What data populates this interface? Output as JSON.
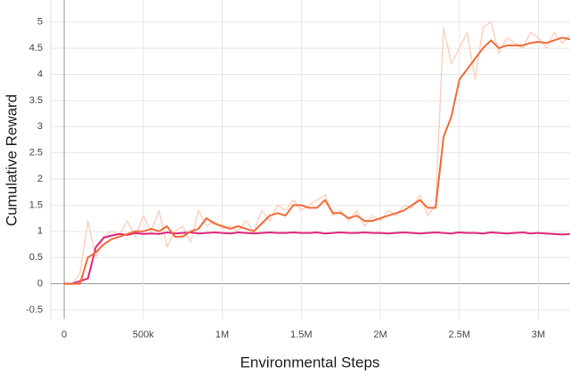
{
  "chart_data": {
    "type": "line",
    "x_label": "Environmental Steps",
    "y_label": "Cumulative Reward",
    "x": [
      0,
      50000,
      100000,
      150000,
      200000,
      250000,
      300000,
      350000,
      400000,
      450000,
      500000,
      550000,
      600000,
      650000,
      700000,
      750000,
      800000,
      850000,
      900000,
      950000,
      1000000,
      1050000,
      1100000,
      1150000,
      1200000,
      1250000,
      1300000,
      1350000,
      1400000,
      1450000,
      1500000,
      1550000,
      1600000,
      1650000,
      1700000,
      1750000,
      1800000,
      1850000,
      1900000,
      1950000,
      2000000,
      2050000,
      2100000,
      2150000,
      2200000,
      2250000,
      2300000,
      2350000,
      2400000,
      2450000,
      2500000,
      2550000,
      2600000,
      2650000,
      2700000,
      2750000,
      2800000,
      2850000,
      2900000,
      2950000,
      3000000,
      3050000,
      3100000,
      3150000,
      3200000
    ],
    "series": [
      {
        "color": "#fcd2c2",
        "values": [
          0,
          0,
          0.2,
          1.2,
          0.5,
          0.9,
          1.0,
          0.95,
          1.2,
          0.9,
          1.3,
          1.0,
          1.4,
          0.7,
          1.0,
          1.1,
          0.8,
          1.4,
          1.1,
          1.2,
          1.05,
          1.1,
          1.0,
          1.2,
          1.0,
          1.4,
          1.2,
          1.5,
          1.4,
          1.6,
          1.4,
          1.5,
          1.6,
          1.7,
          1.3,
          1.4,
          1.2,
          1.4,
          1.1,
          1.3,
          1.2,
          1.4,
          1.3,
          1.5,
          1.45,
          1.7,
          1.3,
          1.5,
          4.9,
          4.2,
          4.5,
          4.8,
          3.9,
          4.9,
          5.0,
          4.4,
          4.7,
          4.6,
          4.5,
          4.8,
          4.7,
          4.5,
          4.8,
          4.6,
          4.75
        ]
      },
      {
        "color": "#e0267b",
        "values": [
          0,
          0,
          0.05,
          0.1,
          0.7,
          0.88,
          0.92,
          0.95,
          0.93,
          0.97,
          0.95,
          0.96,
          0.95,
          0.98,
          0.96,
          0.97,
          0.98,
          0.96,
          0.97,
          0.98,
          0.97,
          0.96,
          0.98,
          0.97,
          0.96,
          0.97,
          0.98,
          0.97,
          0.97,
          0.98,
          0.97,
          0.97,
          0.98,
          0.96,
          0.97,
          0.98,
          0.97,
          0.97,
          0.98,
          0.97,
          0.97,
          0.96,
          0.97,
          0.98,
          0.97,
          0.96,
          0.97,
          0.98,
          0.97,
          0.96,
          0.98,
          0.97,
          0.97,
          0.96,
          0.98,
          0.97,
          0.96,
          0.97,
          0.98,
          0.96,
          0.97,
          0.96,
          0.95,
          0.94,
          0.95
        ]
      },
      {
        "color": "#f26b38",
        "values": [
          0,
          0,
          0,
          0.5,
          0.6,
          0.75,
          0.85,
          0.9,
          0.95,
          1.0,
          1.0,
          1.05,
          1.0,
          1.1,
          0.9,
          0.9,
          1.0,
          1.05,
          1.25,
          1.15,
          1.1,
          1.05,
          1.1,
          1.05,
          1.0,
          1.15,
          1.3,
          1.35,
          1.3,
          1.5,
          1.5,
          1.45,
          1.45,
          1.6,
          1.35,
          1.35,
          1.25,
          1.3,
          1.2,
          1.2,
          1.25,
          1.3,
          1.35,
          1.4,
          1.5,
          1.6,
          1.45,
          1.45,
          2.8,
          3.2,
          3.9,
          4.1,
          4.3,
          4.5,
          4.65,
          4.5,
          4.55,
          4.55,
          4.55,
          4.6,
          4.62,
          4.6,
          4.65,
          4.7,
          4.67
        ]
      }
    ],
    "xlim": [
      -85000,
      3200000
    ],
    "ylim": [
      -0.67,
      5.42
    ],
    "xticks": [
      0,
      {
        "value": 500000,
        "label": "500k"
      },
      {
        "value": 1000000,
        "label": "1M"
      },
      {
        "value": 1500000,
        "label": "1.5M"
      },
      {
        "value": 2000000,
        "label": "2M"
      },
      {
        "value": 2500000,
        "label": "2.5M"
      },
      {
        "value": 3000000,
        "label": "3M"
      }
    ],
    "yticks": [
      -0.5,
      0,
      0.5,
      1,
      1.5,
      2,
      2.5,
      3,
      3.5,
      4,
      4.5,
      5
    ],
    "grid": true
  }
}
